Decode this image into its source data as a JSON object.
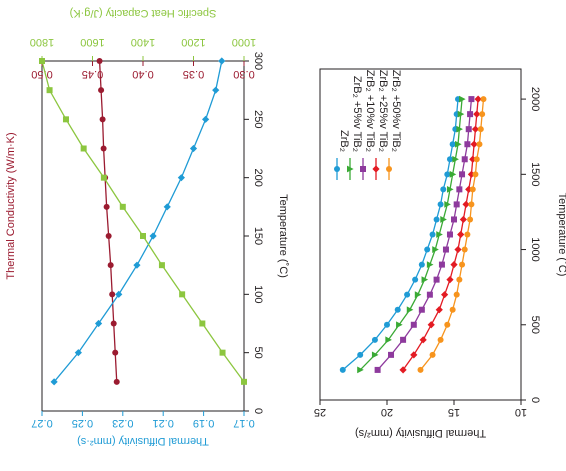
{
  "colors": {
    "conductivity": "#9b1b30",
    "diffusivity": "#1f9bd5",
    "heat_capacity": "#8cc63f",
    "axis": "#231f20",
    "zrb2": "#1f9bd5",
    "tib2_5": "#3aaa35",
    "tib2_10": "#8e3a9d",
    "tib2_25": "#e31b23",
    "tib2_50": "#f7941d"
  },
  "chart_data": [
    {
      "type": "line",
      "orientation": "rotated 90° clockwise",
      "xlabel": "Temperature (˚C)",
      "x_ticks": [
        "0",
        "50",
        "100",
        "150",
        "200",
        "250",
        "300"
      ],
      "xlim": [
        0,
        300
      ],
      "axes": {
        "diffusivity": {
          "label": "Thermal Diffusivity (mm²·s)",
          "ticks": [
            "0.27",
            "0.25",
            "0.23",
            "0.21",
            "0.19",
            "0.17"
          ],
          "range": [
            0.17,
            0.27
          ]
        },
        "conductivity": {
          "label": "Thermal Conductivity (W/m·K)",
          "ticks": [
            "0.50",
            "0.45",
            "0.40",
            "0.35",
            "0.30"
          ],
          "range": [
            0.3,
            0.5
          ]
        },
        "heat_capacity": {
          "label": "Specific Heat Capacity (J/g·K)",
          "ticks": [
            "1800",
            "1600",
            "1400",
            "1200",
            "1000"
          ],
          "range": [
            1000,
            1800
          ]
        }
      },
      "series": [
        {
          "axis": "conductivity",
          "color_key": "conductivity",
          "marker": "circle",
          "x": [
            25,
            50,
            75,
            100,
            125,
            150,
            175,
            200,
            225,
            250,
            275,
            300
          ],
          "y": [
            0.426,
            0.4275,
            0.429,
            0.4305,
            0.432,
            0.434,
            0.436,
            0.4375,
            0.439,
            0.44,
            0.4415,
            0.443
          ]
        },
        {
          "axis": "diffusivity",
          "color_key": "diffusivity",
          "marker": "diamond",
          "x": [
            25,
            50,
            75,
            100,
            125,
            150,
            175,
            200,
            225,
            250,
            275,
            300
          ],
          "y": [
            0.264,
            0.252,
            0.242,
            0.232,
            0.223,
            0.215,
            0.208,
            0.201,
            0.195,
            0.189,
            0.184,
            0.181
          ]
        },
        {
          "axis": "heat_capacity",
          "color_key": "heat_capacity",
          "marker": "square",
          "x": [
            25,
            50,
            75,
            100,
            125,
            150,
            175,
            200,
            225,
            250,
            275,
            300
          ],
          "y": [
            1000,
            1085,
            1165,
            1245,
            1325,
            1400,
            1480,
            1555,
            1635,
            1705,
            1770,
            1800
          ]
        }
      ]
    },
    {
      "type": "line",
      "orientation": "rotated 90° clockwise",
      "xlabel": "Temperature (˚C)",
      "ylabel": "Thermal Diffusivity (mm²/s)",
      "x_ticks": [
        "0",
        "500",
        "1000",
        "1500",
        "2000"
      ],
      "y_ticks": [
        "25",
        "20",
        "15",
        "10"
      ],
      "xlim": [
        0,
        2200
      ],
      "ylim": [
        10,
        25
      ],
      "legend_position": "top-right",
      "series": [
        {
          "name": "ZrB₂",
          "color_key": "zrb2",
          "marker": "circle",
          "x": [
            200,
            300,
            400,
            500,
            600,
            700,
            800,
            900,
            1000,
            1100,
            1200,
            1300,
            1400,
            1500,
            1600,
            1700,
            1800,
            1900,
            2000
          ],
          "y": [
            23.3,
            22.0,
            20.9,
            20.0,
            19.2,
            18.5,
            17.9,
            17.4,
            17.0,
            16.6,
            16.3,
            16.0,
            15.8,
            15.5,
            15.3,
            15.1,
            14.9,
            14.8,
            14.7
          ]
        },
        {
          "name": "ZrB₂ +5%v TiB₂",
          "color_key": "tib2_5",
          "marker": "triangle",
          "x": [
            200,
            300,
            400,
            500,
            600,
            700,
            800,
            900,
            1000,
            1100,
            1200,
            1300,
            1400,
            1500,
            1600,
            1700,
            1800,
            1900,
            2000
          ],
          "y": [
            22.0,
            20.9,
            19.9,
            19.1,
            18.3,
            17.7,
            17.2,
            16.8,
            16.4,
            16.1,
            15.8,
            15.5,
            15.3,
            15.1,
            14.9,
            14.7,
            14.6,
            14.5,
            14.4
          ]
        },
        {
          "name": "ZrB₂ +10%v TiB₂",
          "color_key": "tib2_10",
          "marker": "square",
          "x": [
            200,
            300,
            400,
            500,
            600,
            700,
            800,
            900,
            1000,
            1100,
            1200,
            1300,
            1400,
            1500,
            1600,
            1700,
            1800,
            1900,
            2000
          ],
          "y": [
            20.7,
            19.7,
            18.8,
            18.0,
            17.4,
            16.8,
            16.3,
            15.9,
            15.6,
            15.3,
            15.0,
            14.8,
            14.6,
            14.4,
            14.2,
            14.0,
            13.9,
            13.8,
            13.7
          ]
        },
        {
          "name": "ZrB₂ +25%v TiB₂",
          "color_key": "tib2_25",
          "marker": "diamond",
          "x": [
            200,
            300,
            400,
            500,
            600,
            700,
            800,
            900,
            1000,
            1100,
            1200,
            1300,
            1400,
            1500,
            1600,
            1700,
            1800,
            1900,
            2000
          ],
          "y": [
            18.8,
            18.0,
            17.3,
            16.7,
            16.1,
            15.7,
            15.3,
            15.0,
            14.7,
            14.5,
            14.3,
            14.1,
            13.9,
            13.7,
            13.6,
            13.5,
            13.4,
            13.3,
            13.2
          ]
        },
        {
          "name": "ZrB₂ +50%v TiB₂",
          "color_key": "tib2_50",
          "marker": "circle",
          "x": [
            200,
            300,
            400,
            500,
            600,
            700,
            800,
            900,
            1000,
            1100,
            1200,
            1300,
            1400,
            1500,
            1600,
            1700,
            1800,
            1900,
            2000
          ],
          "y": [
            17.5,
            16.6,
            16.0,
            15.5,
            15.1,
            14.8,
            14.6,
            14.4,
            14.2,
            14.0,
            13.8,
            13.7,
            13.6,
            13.4,
            13.3,
            13.1,
            13.0,
            12.9,
            12.8
          ]
        }
      ]
    }
  ]
}
